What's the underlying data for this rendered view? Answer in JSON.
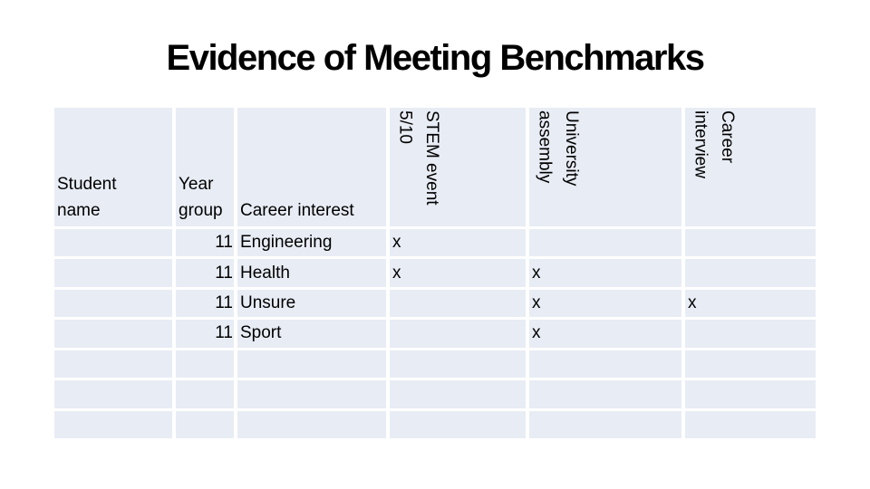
{
  "slide": {
    "title": "Evidence of Meeting Benchmarks",
    "colors": {
      "slide_background": "#ffffff",
      "cell_background": "#e8ecf4",
      "gridline": "#ffffff",
      "text": "#000000"
    }
  },
  "table": {
    "columns": [
      {
        "id": "student-name",
        "label": "Student\nname",
        "orientation": "horizontal"
      },
      {
        "id": "year-group",
        "label": "Year\ngroup",
        "orientation": "horizontal"
      },
      {
        "id": "career-interest",
        "label": "Career interest",
        "orientation": "horizontal"
      },
      {
        "id": "stem-event",
        "label": "STEM event\n5/10",
        "orientation": "vertical"
      },
      {
        "id": "university-assembly",
        "label": "University\nassembly",
        "orientation": "vertical"
      },
      {
        "id": "career-interview",
        "label": "Career\ninterview",
        "orientation": "vertical"
      }
    ],
    "rows": [
      {
        "cells": [
          "",
          "11",
          "Engineering",
          "x",
          "",
          ""
        ]
      },
      {
        "cells": [
          "",
          "11",
          "Health",
          "x",
          "x",
          ""
        ]
      },
      {
        "cells": [
          "",
          "11",
          "Unsure",
          "",
          "x",
          "x"
        ]
      },
      {
        "cells": [
          "",
          "11",
          "Sport",
          "",
          "x",
          ""
        ]
      },
      {
        "cells": [
          "",
          "",
          "",
          "",
          "",
          ""
        ]
      },
      {
        "cells": [
          "",
          "",
          "",
          "",
          "",
          ""
        ]
      },
      {
        "cells": [
          "",
          "",
          "",
          "",
          "",
          ""
        ]
      }
    ]
  }
}
